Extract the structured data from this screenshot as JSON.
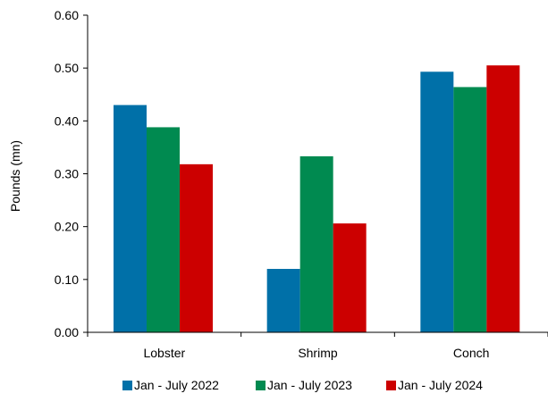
{
  "chart_data": {
    "type": "bar",
    "title": "",
    "xlabel": "",
    "ylabel": "Pounds (mn)",
    "categories": [
      "Lobster",
      "Shrimp",
      "Conch"
    ],
    "series": [
      {
        "name": "Jan - July 2022",
        "color": "#0070a8",
        "values": [
          0.43,
          0.12,
          0.493
        ]
      },
      {
        "name": "Jan - July 2023",
        "color": "#008a50",
        "values": [
          0.388,
          0.333,
          0.464
        ]
      },
      {
        "name": "Jan - July 2024",
        "color": "#cc0000",
        "values": [
          0.318,
          0.206,
          0.505
        ]
      }
    ],
    "ylim": [
      0,
      0.6
    ],
    "yticks": [
      "0.00",
      "0.10",
      "0.20",
      "0.30",
      "0.40",
      "0.50",
      "0.60"
    ],
    "grid": false,
    "legend_position": "bottom"
  }
}
